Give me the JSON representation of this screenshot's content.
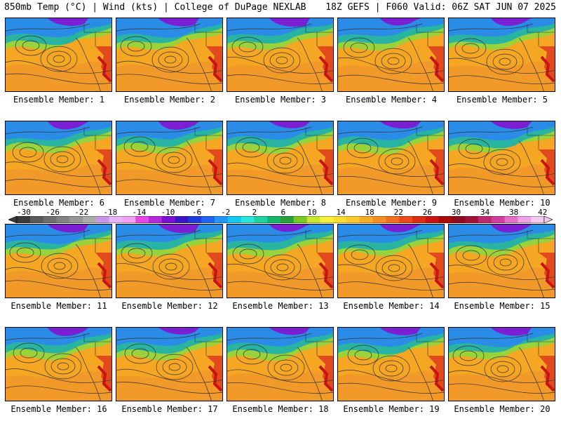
{
  "header": {
    "title_left": "850mb Temp (°C) | Wind (kts) | College of DuPage NEXLAB",
    "title_right": "18Z GEFS | F060 Valid: 06Z SAT JUN 07 2025"
  },
  "members": [
    "Ensemble Member: 1",
    "Ensemble Member: 2",
    "Ensemble Member: 3",
    "Ensemble Member: 4",
    "Ensemble Member: 5",
    "Ensemble Member: 6",
    "Ensemble Member: 7",
    "Ensemble Member: 8",
    "Ensemble Member: 9",
    "Ensemble Member: 10",
    "Ensemble Member: 11",
    "Ensemble Member: 12",
    "Ensemble Member: 13",
    "Ensemble Member: 14",
    "Ensemble Member: 15",
    "Ensemble Member: 16",
    "Ensemble Member: 17",
    "Ensemble Member: 18",
    "Ensemble Member: 19",
    "Ensemble Member: 20"
  ],
  "colorbar": {
    "labels": [
      "-30",
      "-26",
      "-22",
      "-18",
      "-14",
      "-10",
      "-6",
      "-2",
      "2",
      "6",
      "10",
      "14",
      "18",
      "22",
      "26",
      "30",
      "34",
      "38",
      "42"
    ],
    "colors": [
      "#3a3a3a",
      "#5a5a5a",
      "#6e6e6e",
      "#828282",
      "#969696",
      "#aaaaaa",
      "#c896e6",
      "#e6b4fa",
      "#f0a0f0",
      "#e646e6",
      "#b428dc",
      "#7a0fd2",
      "#3c14c8",
      "#1e3cdc",
      "#1e64f0",
      "#1e96f5",
      "#14c8f0",
      "#28e6dc",
      "#1ed2a0",
      "#14b46e",
      "#28a03c",
      "#78c828",
      "#c8e632",
      "#f5f03c",
      "#fadc32",
      "#fac82d",
      "#f5aa28",
      "#f58c23",
      "#f06e1e",
      "#eb4b19",
      "#dc2d14",
      "#c81414",
      "#aa0a0a",
      "#8c0a1e",
      "#a0143c",
      "#be286e",
      "#d23ca0",
      "#e66ec8",
      "#f0a0e6",
      "#f5c8f0"
    ]
  }
}
